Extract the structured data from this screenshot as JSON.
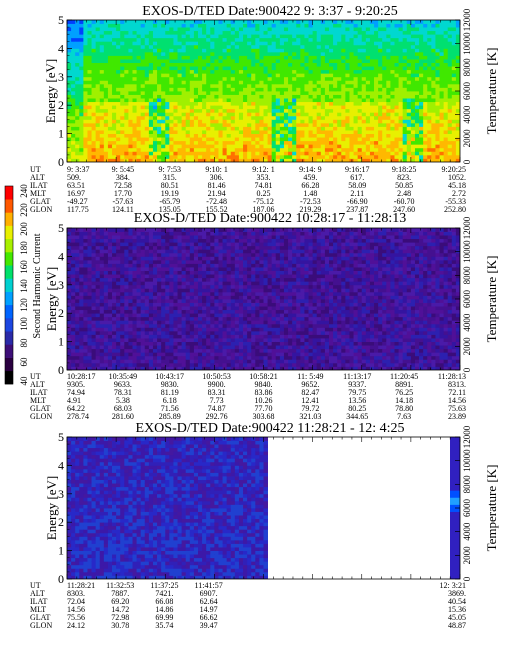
{
  "colorbar": {
    "label": "Second Harmonic Current",
    "ticks": [
      "40",
      "60",
      "80",
      "100",
      "120",
      "140",
      "160",
      "180",
      "200",
      "220",
      "240"
    ],
    "colors": [
      "#000000",
      "#2a0040",
      "#3d0e78",
      "#2a2aa8",
      "#1c46e0",
      "#0064ff",
      "#00a0ff",
      "#00d0d0",
      "#00e06a",
      "#44e800",
      "#a8f000",
      "#e8f000",
      "#ffb000",
      "#ff5800",
      "#ff0000"
    ]
  },
  "chart_data": [
    {
      "type": "heatmap",
      "title": "EXOS-D/TED   Date:900422   9: 3:37 - 9:20:25",
      "ylabel": "Energy [eV]",
      "y2label": "Temperature [K]",
      "y_ticks": [
        "0",
        "1",
        "2",
        "3",
        "4",
        "5"
      ],
      "y_range": [
        0,
        5
      ],
      "y2_ticks": [
        "0",
        "2000",
        "4000",
        "6000",
        "8000",
        "10000",
        "12000"
      ],
      "y2_range": [
        0,
        12000
      ],
      "row_labels": [
        "UT",
        "ALT",
        "ILAT",
        "MLT",
        "GLAT",
        "GLON"
      ],
      "columns": [
        [
          "9: 3:37",
          "509.",
          "63.51",
          "16.97",
          "-49.27",
          "117.75"
        ],
        [
          "9: 5:45",
          "384.",
          "72.58",
          "17.70",
          "-57.63",
          "124.11"
        ],
        [
          "9: 7:53",
          "315.",
          "80.51",
          "19.19",
          "-65.79",
          "135.05"
        ],
        [
          "9:10: 1",
          "306.",
          "81.46",
          "21.94",
          "-72.48",
          "155.52"
        ],
        [
          "9:12: 1",
          "353.",
          "74.81",
          "0.25",
          "-75.12",
          "187.06"
        ],
        [
          "9:14: 9",
          "459.",
          "66.28",
          "1.48",
          "-72.53",
          "219.29"
        ],
        [
          "9:16:17",
          "617.",
          "58.09",
          "2.11",
          "-66.90",
          "237.87"
        ],
        [
          "9:18:25",
          "823.",
          "50.85",
          "2.48",
          "-60.70",
          "247.60"
        ],
        [
          "9:20:25",
          "1052.",
          "45.18",
          "2.72",
          "-55.33",
          "252.80"
        ]
      ]
    },
    {
      "type": "heatmap",
      "title": "EXOS-D/TED   Date:900422   10:28:17 - 11:28:13",
      "ylabel": "Energy [eV]",
      "y2label": "Temperature [K]",
      "y_ticks": [
        "0",
        "1",
        "2",
        "3",
        "4",
        "5"
      ],
      "y_range": [
        0,
        5
      ],
      "y2_ticks": [
        "0",
        "2000",
        "4000",
        "6000",
        "8000",
        "10000",
        "12000"
      ],
      "y2_range": [
        0,
        12000
      ],
      "row_labels": [
        "UT",
        "ALT",
        "ILAT",
        "MLT",
        "GLAT",
        "GLON"
      ],
      "columns": [
        [
          "10:28:17",
          "9305.",
          "74.94",
          "4.91",
          "64.22",
          "278.74"
        ],
        [
          "10:35:49",
          "9633.",
          "78.31",
          "5.38",
          "68.03",
          "281.60"
        ],
        [
          "10:43:17",
          "9830.",
          "81.19",
          "6.18",
          "71.56",
          "285.89"
        ],
        [
          "10:50:53",
          "9900.",
          "83.31",
          "7.73",
          "74.87",
          "292.76"
        ],
        [
          "10:58:21",
          "9840.",
          "83.86",
          "10.26",
          "77.70",
          "303.68"
        ],
        [
          "11: 5:49",
          "9652.",
          "82.47",
          "12.41",
          "79.72",
          "321.03"
        ],
        [
          "11:13:17",
          "9337.",
          "79.75",
          "13.56",
          "80.25",
          "344.65"
        ],
        [
          "11:20:45",
          "8891.",
          "76.25",
          "14.18",
          "78.80",
          "7.63"
        ],
        [
          "11:28:13",
          "8313.",
          "72.11",
          "14.56",
          "75.63",
          "23.89"
        ]
      ]
    },
    {
      "type": "heatmap",
      "title": "EXOS-D/TED   Date:900422   11:28:21 - 12: 4:25",
      "ylabel": "Energy [eV]",
      "y2label": "Temperature [K]",
      "y_ticks": [
        "0",
        "1",
        "2",
        "3",
        "4",
        "5"
      ],
      "y_range": [
        0,
        5
      ],
      "y2_ticks": [
        "0",
        "2000",
        "4000",
        "6000",
        "8000",
        "10000",
        "12000"
      ],
      "y2_range": [
        0,
        12000
      ],
      "row_labels": [
        "UT",
        "ALT",
        "ILAT",
        "MLT",
        "GLAT",
        "GLON"
      ],
      "columns": [
        [
          "11:28:21",
          "8303.",
          "72.04",
          "14.56",
          "75.56",
          "24.12"
        ],
        [
          "11:32:53",
          "7887.",
          "69.20",
          "14.72",
          "72.98",
          "30.78"
        ],
        [
          "11:37:25",
          "7421.",
          "66.08",
          "14.86",
          "69.99",
          "35.74"
        ],
        [
          "11:41:57",
          "6907.",
          "62.64",
          "14.97",
          "66.62",
          "39.47"
        ],
        [
          "12: 3:21",
          "3869.",
          "40.54",
          "15.36",
          "45.05",
          "48.87"
        ]
      ]
    }
  ]
}
